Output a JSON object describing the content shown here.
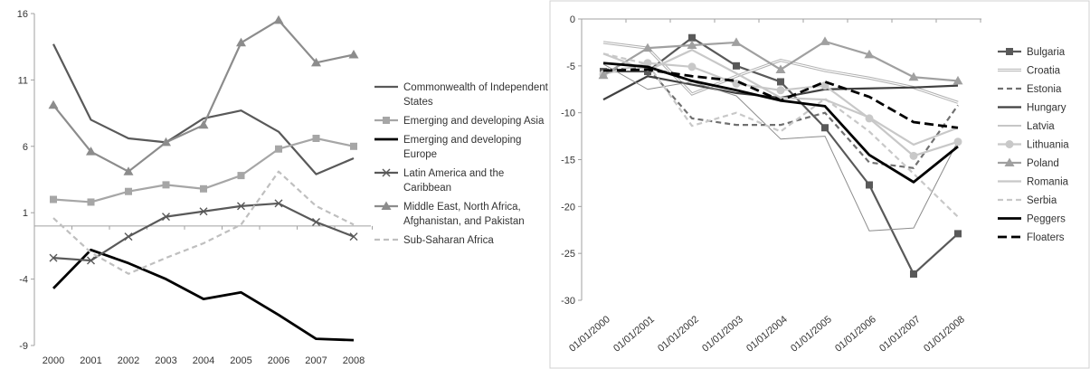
{
  "chart_data": [
    {
      "type": "line",
      "title": "",
      "xlabel": "",
      "ylabel": "",
      "categories": [
        "2000",
        "2001",
        "2002",
        "2003",
        "2004",
        "2005",
        "2006",
        "2007",
        "2008"
      ],
      "ylim": [
        -9,
        16
      ],
      "yticks": [
        16,
        11,
        6,
        1,
        -4,
        -9
      ],
      "grid": false,
      "legend": "right",
      "series": [
        {
          "name": "Commonwealth of Independent States",
          "color": "#595959",
          "marker": "none",
          "dash": "solid",
          "values": [
            13.7,
            8.0,
            6.6,
            6.3,
            8.1,
            8.7,
            7.1,
            3.9,
            5.1
          ]
        },
        {
          "name": "Emerging and developing Asia",
          "color": "#a6a6a6",
          "marker": "square",
          "dash": "solid",
          "values": [
            2.0,
            1.8,
            2.6,
            3.1,
            2.8,
            3.8,
            5.8,
            6.6,
            6.0
          ]
        },
        {
          "name": "Emerging and developing Europe",
          "color": "#000000",
          "marker": "none",
          "dash": "solid",
          "values": [
            -4.7,
            -1.8,
            -2.8,
            -4.0,
            -5.5,
            -5.0,
            -6.7,
            -8.5,
            -8.6
          ]
        },
        {
          "name": "Latin America and the Caribbean",
          "color": "#595959",
          "marker": "x",
          "dash": "solid",
          "values": [
            -2.4,
            -2.6,
            -0.8,
            0.7,
            1.1,
            1.5,
            1.7,
            0.3,
            -0.8
          ]
        },
        {
          "name": "Middle East, North Africa, Afghanistan, and Pakistan",
          "color": "#8c8c8c",
          "marker": "triangle",
          "dash": "solid",
          "values": [
            9.1,
            5.6,
            4.1,
            6.3,
            7.6,
            13.8,
            15.5,
            12.3,
            12.9
          ]
        },
        {
          "name": "Sub-Saharan Africa",
          "color": "#bfbfbf",
          "marker": "none",
          "dash": "dash",
          "values": [
            0.6,
            -2.0,
            -3.6,
            -2.4,
            -1.3,
            0.1,
            4.1,
            1.5,
            0.1
          ]
        }
      ]
    },
    {
      "type": "line",
      "title": "",
      "xlabel": "",
      "ylabel": "",
      "categories": [
        "01/01/2000",
        "01/01/2001",
        "01/01/2002",
        "01/01/2003",
        "01/01/2004",
        "01/01/2005",
        "01/01/2006",
        "01/01/2007",
        "01/01/2008"
      ],
      "ylim": [
        -30,
        0
      ],
      "yticks": [
        0,
        -5,
        -10,
        -15,
        -20,
        -25,
        -30
      ],
      "grid": false,
      "legend": "right",
      "series": [
        {
          "name": "Bulgaria",
          "color": "#595959",
          "marker": "square",
          "dash": "solid",
          "values": [
            -5.6,
            -5.6,
            -2.0,
            -5.0,
            -6.7,
            -11.6,
            -17.7,
            -27.2,
            -22.9
          ]
        },
        {
          "name": "Croatia",
          "color": "#b0b0b0",
          "marker": "none",
          "dash": "double",
          "values": [
            -2.5,
            -3.1,
            -8.0,
            -6.1,
            -4.4,
            -5.5,
            -6.3,
            -7.3,
            -8.9
          ]
        },
        {
          "name": "Estonia",
          "color": "#707070",
          "marker": "none",
          "dash": "dash",
          "values": [
            -5.4,
            -5.2,
            -10.6,
            -11.3,
            -11.3,
            -10.0,
            -15.3,
            -15.9,
            -9.2
          ]
        },
        {
          "name": "Hungary",
          "color": "#404040",
          "marker": "none",
          "dash": "solid",
          "values": [
            -8.6,
            -6.1,
            -7.0,
            -7.9,
            -8.4,
            -7.5,
            -7.4,
            -7.3,
            -7.1
          ]
        },
        {
          "name": "Latvia",
          "color": "#8c8c8c",
          "marker": "none",
          "dash": "solid",
          "values": [
            -4.8,
            -7.5,
            -6.7,
            -8.2,
            -12.8,
            -12.5,
            -22.6,
            -22.3,
            -13.0
          ]
        },
        {
          "name": "Lithuania",
          "color": "#c8c8c8",
          "marker": "circle",
          "dash": "solid",
          "values": [
            -5.9,
            -4.7,
            -5.1,
            -6.9,
            -7.6,
            -7.1,
            -10.6,
            -14.6,
            -13.1
          ]
        },
        {
          "name": "Poland",
          "color": "#a0a0a0",
          "marker": "triangle",
          "dash": "solid",
          "values": [
            -6.0,
            -3.1,
            -2.8,
            -2.5,
            -5.4,
            -2.4,
            -3.8,
            -6.2,
            -6.6
          ]
        },
        {
          "name": "Romania",
          "color": "#c8c8c8",
          "marker": "none",
          "dash": "solid",
          "values": [
            -3.7,
            -5.5,
            -3.3,
            -5.8,
            -8.4,
            -8.6,
            -10.5,
            -13.4,
            -11.6
          ]
        },
        {
          "name": "Serbia",
          "color": "#c8c8c8",
          "marker": "none",
          "dash": "dash",
          "values": [
            -3.7,
            -4.8,
            -11.4,
            -10.0,
            -12.0,
            -8.5,
            -12.0,
            -16.5,
            -21.1
          ]
        },
        {
          "name": "Peggers",
          "color": "#000000",
          "marker": "none",
          "dash": "solid",
          "values": [
            -4.7,
            -5.1,
            -6.6,
            -7.6,
            -8.7,
            -9.3,
            -14.5,
            -17.4,
            -13.6
          ]
        },
        {
          "name": "Floaters",
          "color": "#000000",
          "marker": "none",
          "dash": "dash",
          "values": [
            -5.5,
            -5.4,
            -6.1,
            -6.6,
            -8.7,
            -6.7,
            -8.3,
            -11.0,
            -11.6
          ]
        }
      ]
    }
  ]
}
